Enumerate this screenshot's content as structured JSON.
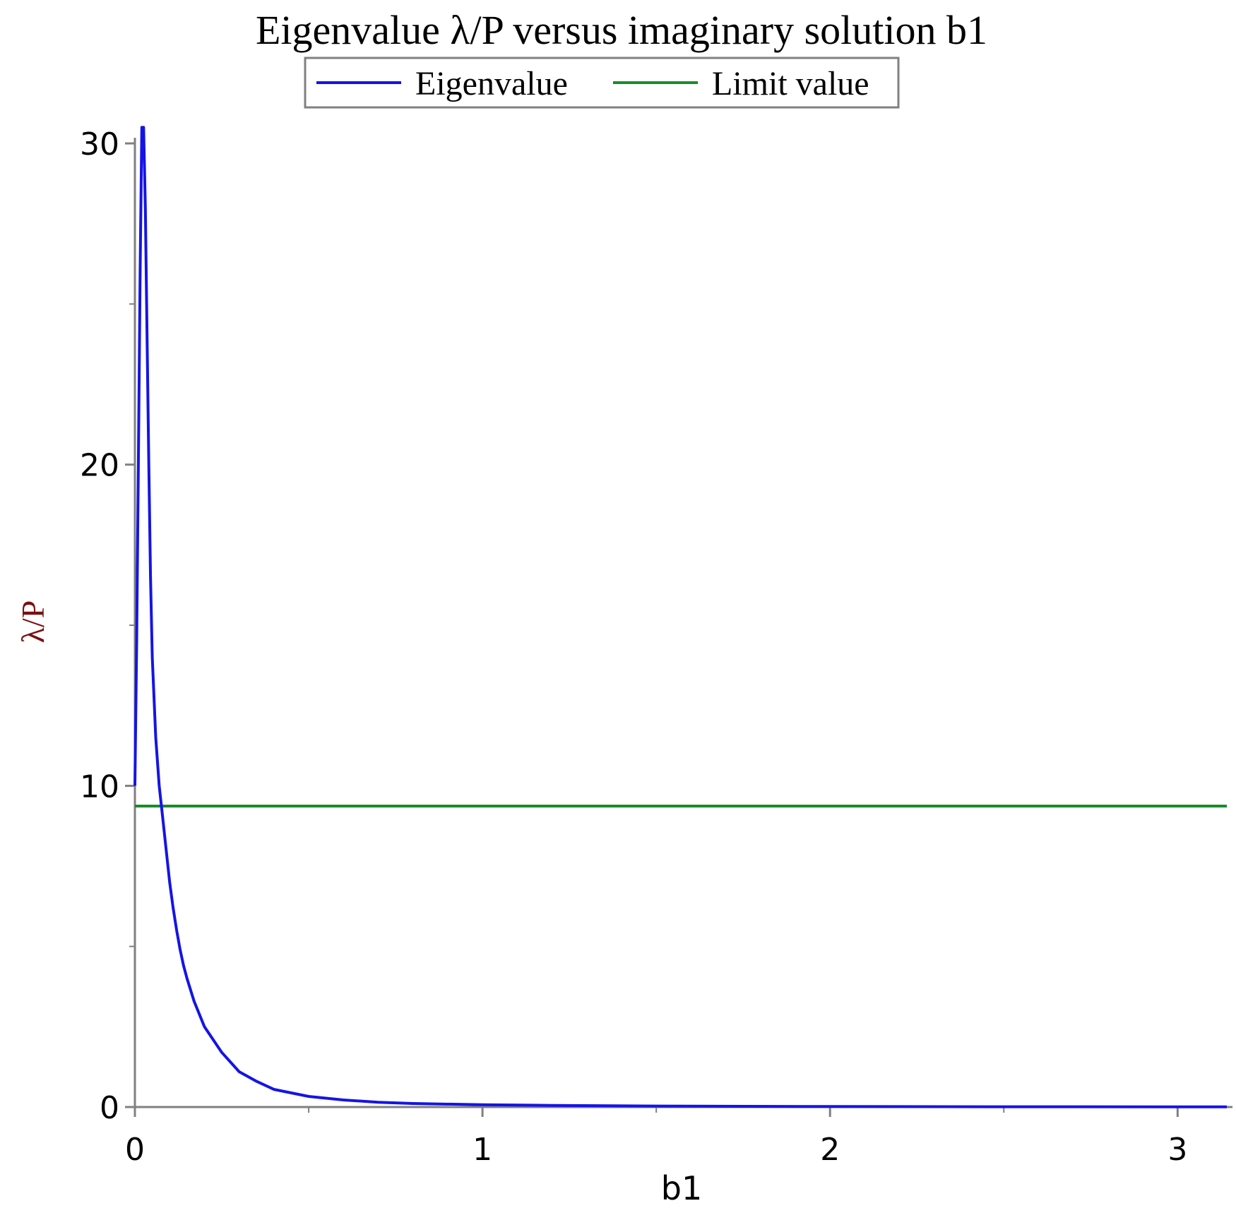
{
  "chart_data": {
    "type": "line",
    "title": "Eigenvalue λ/P versus imaginary solution b1",
    "xlabel": "b1",
    "ylabel": "λ/P",
    "xlim": [
      0,
      3.14159
    ],
    "ylim": [
      0,
      30
    ],
    "x_ticks": [
      {
        "value": 0,
        "label": "0"
      },
      {
        "value": 1,
        "label": "1"
      },
      {
        "value": 2,
        "label": "2"
      },
      {
        "value": 3,
        "label": "3"
      }
    ],
    "x_minor_ticks": [
      0.5,
      1.5,
      2.5
    ],
    "y_ticks": [
      {
        "value": 0,
        "label": "0"
      },
      {
        "value": 10,
        "label": "10"
      },
      {
        "value": 20,
        "label": "20"
      },
      {
        "value": 30,
        "label": "30"
      }
    ],
    "y_minor_ticks": [
      5,
      15,
      25
    ],
    "grid": false,
    "legend_position": "top-center",
    "series": [
      {
        "name": "Eigenvalue",
        "color": "#1414e6",
        "x": [
          0.0,
          0.005,
          0.01,
          0.015,
          0.02,
          0.025,
          0.03,
          0.035,
          0.04,
          0.045,
          0.05,
          0.06,
          0.07,
          0.08,
          0.09,
          0.1,
          0.11,
          0.12,
          0.13,
          0.14,
          0.15,
          0.17,
          0.2,
          0.25,
          0.3,
          0.35,
          0.4,
          0.5,
          0.6,
          0.7,
          0.8,
          1.0,
          1.2,
          1.5,
          2.0,
          2.5,
          3.14159
        ],
        "y": [
          10.0,
          14.5,
          20.0,
          26.0,
          30.5,
          30.5,
          28.0,
          24.0,
          20.0,
          16.5,
          14.0,
          11.5,
          10.0,
          9.0,
          8.0,
          7.0,
          6.2,
          5.5,
          4.9,
          4.4,
          4.0,
          3.3,
          2.5,
          1.7,
          1.1,
          0.8,
          0.55,
          0.33,
          0.22,
          0.15,
          0.11,
          0.07,
          0.05,
          0.03,
          0.015,
          0.008,
          0.004
        ]
      },
      {
        "name": "Limit value",
        "color": "#1a8c2a",
        "x": [
          0,
          3.14159
        ],
        "y": [
          9.37,
          9.37
        ]
      }
    ]
  }
}
